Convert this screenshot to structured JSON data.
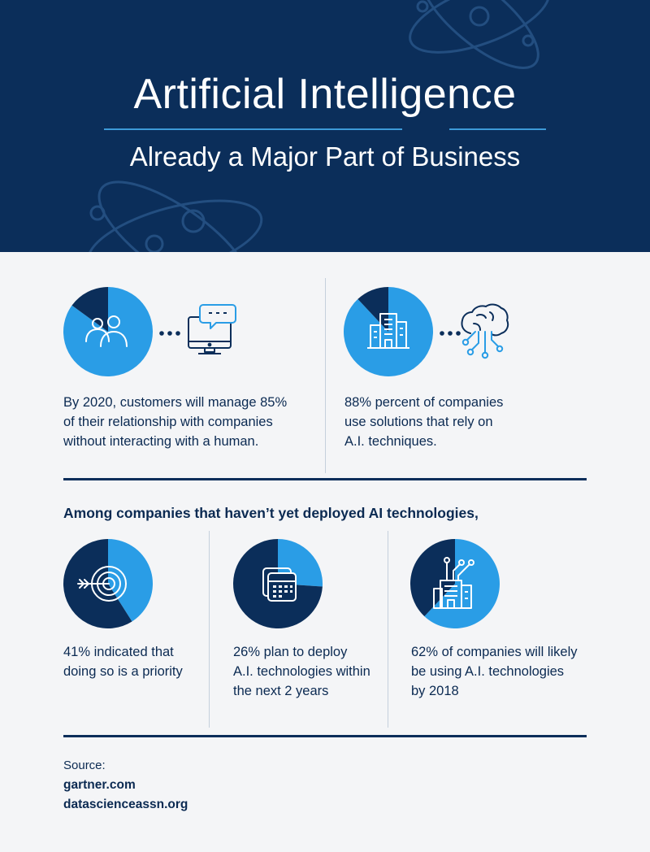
{
  "header": {
    "title": "Artificial Intelligence",
    "subtitle": "Already a Major Part of Business"
  },
  "chart_data": [
    {
      "type": "pie",
      "title": "",
      "slices": [
        {
          "value": 85
        },
        {
          "value": 15
        }
      ],
      "caption": "By 2020, customers will manage 85% of their relationship with companies without interacting with a human."
    },
    {
      "type": "pie",
      "title": "",
      "slices": [
        {
          "value": 88
        },
        {
          "value": 12
        }
      ],
      "caption": "88% percent of companies use solutions that rely on A.I. techniques."
    },
    {
      "type": "pie",
      "title": "",
      "slices": [
        {
          "value": 41
        },
        {
          "value": 59
        }
      ],
      "caption": "41% indicated that doing so is a priority"
    },
    {
      "type": "pie",
      "title": "",
      "slices": [
        {
          "value": 26
        },
        {
          "value": 74
        }
      ],
      "caption": "26% plan to deploy A.I. technologies within the next 2 years"
    },
    {
      "type": "pie",
      "title": "",
      "slices": [
        {
          "value": 62
        },
        {
          "value": 38
        }
      ],
      "caption": "62% of companies will likely be using A.I. technologies by 2018"
    }
  ],
  "stats": {
    "s1": [
      "By 2020, customers will manage 85%",
      "of their relationship with companies",
      "without interacting with a human."
    ],
    "s2": [
      "88% percent of companies",
      "use solutions that rely on",
      "A.I. techniques."
    ],
    "s3": [
      "41% indicated that",
      "doing so is a priority"
    ],
    "s4": [
      "26% plan to deploy",
      "A.I. technologies within",
      "the next 2 years"
    ],
    "s5": [
      "62% of companies will likely",
      "be using A.I. technologies",
      "by 2018"
    ]
  },
  "section": {
    "heading": "Among companies that haven’t yet deployed AI technologies,"
  },
  "source": {
    "label": "Source:",
    "items": [
      "gartner.com",
      "datascienceassn.org"
    ]
  },
  "colors": {
    "navy": "#0b2e5a",
    "pie_light": "#2a9de6",
    "pie_dark": "#0b2e5a",
    "accent_line": "#3d9ad8"
  },
  "icons": [
    "people-icon",
    "chat-monitor-icon",
    "building-icon",
    "brain-circuit-icon",
    "target-arrow-icon",
    "calendar-icon",
    "building-circuit-icon"
  ]
}
